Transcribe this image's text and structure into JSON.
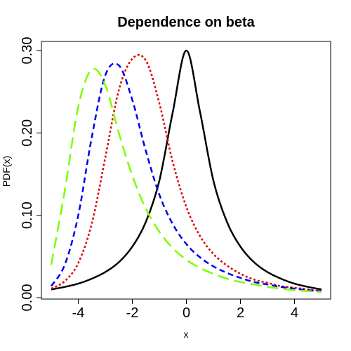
{
  "chart_data": {
    "type": "line",
    "title": "Dependence on beta",
    "xlabel": "x",
    "ylabel": "PDF(x)",
    "xlim": [
      -5,
      5
    ],
    "ylim": [
      0,
      0.3
    ],
    "x_ticks": [
      -4,
      -2,
      0,
      2,
      4
    ],
    "x_tick_labels": [
      "-4",
      "-2",
      "0",
      "2",
      "4"
    ],
    "y_ticks": [
      0,
      0.1,
      0.2,
      0.3
    ],
    "y_tick_labels": [
      "0.00",
      "0.10",
      "0.20",
      "0.30"
    ],
    "grid": false,
    "legend": "none",
    "series": [
      {
        "color": "#000000",
        "dash": "solid",
        "x": [
          -5,
          -4.5,
          -4,
          -3.5,
          -3,
          -2.5,
          -2,
          -1.5,
          -1,
          -0.5,
          0,
          0.5,
          1,
          1.5,
          2,
          2.5,
          3,
          3.5,
          4,
          4.5,
          5
        ],
        "y": [
          0.01,
          0.013,
          0.017,
          0.023,
          0.031,
          0.043,
          0.062,
          0.092,
          0.142,
          0.226,
          0.3,
          0.226,
          0.142,
          0.092,
          0.062,
          0.043,
          0.031,
          0.023,
          0.017,
          0.013,
          0.01
        ]
      },
      {
        "color": "#dd0000",
        "dash": "dotted",
        "x": [
          -5,
          -4.5,
          -4,
          -3.5,
          -3,
          -2.5,
          -2,
          -1.5,
          -1,
          -0.5,
          0,
          0.5,
          1,
          1.5,
          2,
          2.5,
          3,
          3.5,
          4,
          4.5,
          5
        ],
        "y": [
          0.011,
          0.02,
          0.042,
          0.09,
          0.17,
          0.252,
          0.29,
          0.288,
          0.236,
          0.164,
          0.11,
          0.075,
          0.053,
          0.039,
          0.029,
          0.022,
          0.018,
          0.014,
          0.012,
          0.01,
          0.008
        ]
      },
      {
        "color": "#0000ee",
        "dash": "dashed",
        "x": [
          -5,
          -4.5,
          -4,
          -3.5,
          -3,
          -2.5,
          -2,
          -1.5,
          -1,
          -0.5,
          0,
          0.5,
          1,
          1.5,
          2,
          2.5,
          3,
          3.5,
          4,
          4.5,
          5
        ],
        "y": [
          0.014,
          0.04,
          0.1,
          0.195,
          0.27,
          0.282,
          0.24,
          0.178,
          0.125,
          0.089,
          0.065,
          0.049,
          0.038,
          0.03,
          0.024,
          0.019,
          0.016,
          0.013,
          0.011,
          0.009,
          0.008
        ]
      },
      {
        "color": "#7cfc00",
        "dash": "longdash",
        "x": [
          -5,
          -4.5,
          -4,
          -3.5,
          -3,
          -2.5,
          -2,
          -1.5,
          -1,
          -0.5,
          0,
          0.5,
          1,
          1.5,
          2,
          2.5,
          3,
          3.5,
          4,
          4.5,
          5
        ],
        "y": [
          0.04,
          0.13,
          0.232,
          0.277,
          0.258,
          0.2,
          0.148,
          0.108,
          0.08,
          0.06,
          0.046,
          0.036,
          0.029,
          0.023,
          0.019,
          0.016,
          0.013,
          0.011,
          0.009,
          0.008,
          0.007
        ]
      }
    ]
  }
}
